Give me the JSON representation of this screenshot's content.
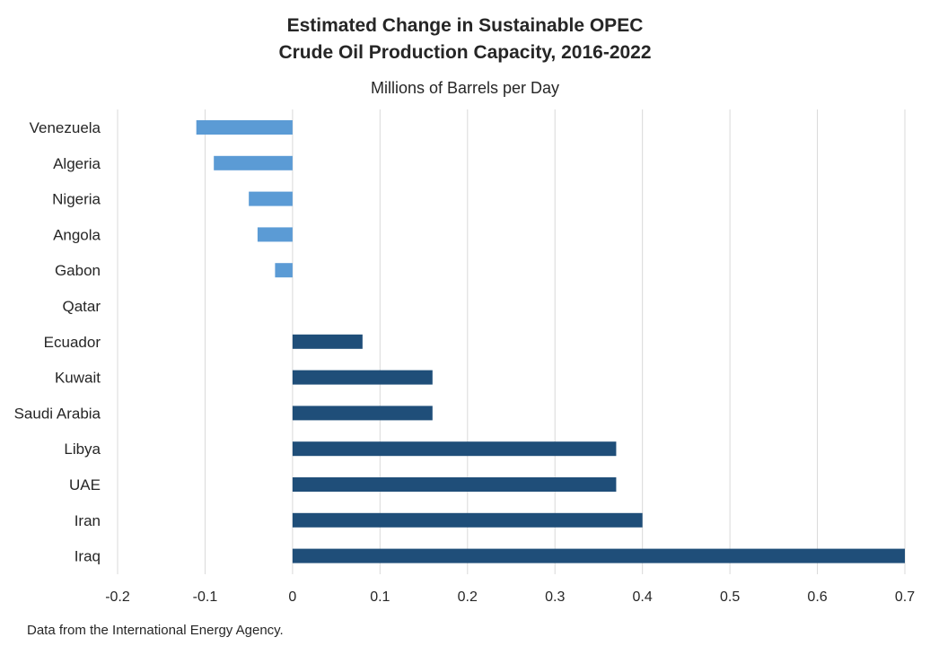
{
  "chart_data": {
    "type": "bar",
    "orientation": "horizontal",
    "title_lines": [
      "Estimated Change in Sustainable OPEC",
      "Crude Oil Production Capacity, 2016-2022"
    ],
    "subtitle": "Millions of Barrels per Day",
    "note": "Data from the International Energy Agency.",
    "categories": [
      "Venezuela",
      "Algeria",
      "Nigeria",
      "Angola",
      "Gabon",
      "Qatar",
      "Ecuador",
      "Kuwait",
      "Saudi Arabia",
      "Libya",
      "UAE",
      "Iran",
      "Iraq"
    ],
    "values": [
      -0.11,
      -0.09,
      -0.05,
      -0.04,
      -0.02,
      0,
      0.08,
      0.16,
      0.16,
      0.37,
      0.37,
      0.4,
      0.7
    ],
    "xlim": [
      -0.2,
      0.7
    ],
    "xticks": [
      "-0.2",
      "-0.1",
      "0",
      "0.1",
      "0.2",
      "0.3",
      "0.4",
      "0.5",
      "0.6",
      "0.7"
    ],
    "grid": true,
    "legend": "none",
    "colors": {
      "negative": "#5b9bd5",
      "positive": "#1f4e79",
      "grid": "#d9d9d9"
    }
  }
}
